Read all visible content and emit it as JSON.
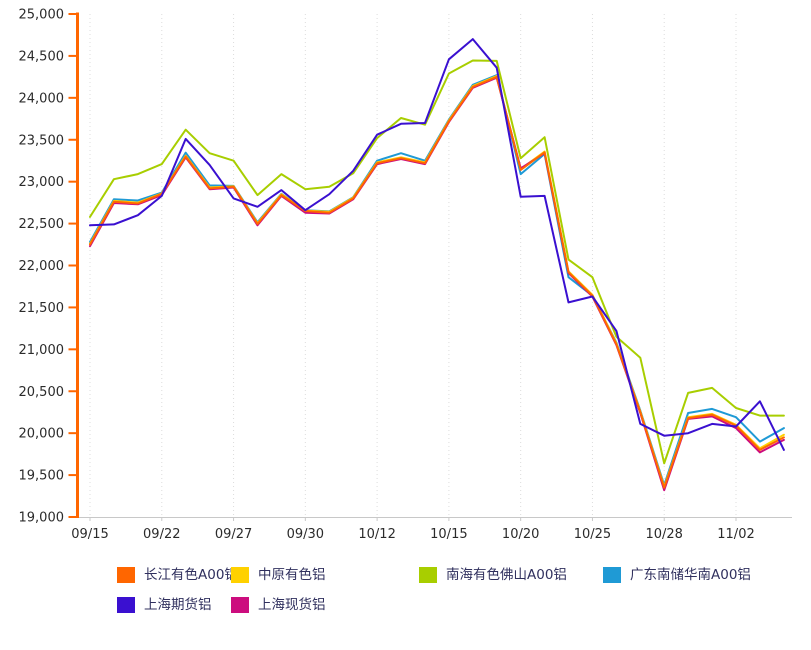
{
  "chart_data": {
    "type": "line",
    "title": "",
    "xlabel": "",
    "ylabel": "",
    "ylim": [
      19000,
      25000
    ],
    "y_tick_step": 500,
    "y_tick_labels": [
      "19,000",
      "19,500",
      "20,000",
      "20,500",
      "21,000",
      "21,500",
      "22,000",
      "22,500",
      "23,000",
      "23,500",
      "24,000",
      "24,500",
      "25,000"
    ],
    "x_labels": [
      "09/15",
      "09/22",
      "09/27",
      "09/30",
      "10/12",
      "10/15",
      "10/20",
      "10/25",
      "10/28",
      "11/02"
    ],
    "x_label_indices": [
      0,
      3,
      6,
      9,
      12,
      15,
      18,
      21,
      24,
      27
    ],
    "n_points": 30,
    "grid": "vertical-dotted",
    "legend_position": "bottom",
    "axis_color": "#FF6600",
    "grid_color": "#DCDCDC",
    "x_axis_color": "#C8C8C8",
    "tick_text_color": "#2B2B2B",
    "draw_order": [
      2,
      3,
      1,
      5,
      0,
      4
    ],
    "series": [
      {
        "name": "长江有色A00铝",
        "color": "#FF6600",
        "values": [
          22250,
          22760,
          22740,
          22855,
          23300,
          22920,
          22940,
          22495,
          22840,
          22650,
          22630,
          22800,
          23220,
          23280,
          23220,
          23720,
          24130,
          24250,
          23140,
          23350,
          21920,
          21640,
          21060,
          20250,
          19350,
          20180,
          20220,
          20090,
          19800,
          19950
        ]
      },
      {
        "name": "中原有色铝",
        "color": "#FFD100",
        "values": [
          22260,
          22770,
          22750,
          22860,
          23310,
          22930,
          22945,
          22505,
          22850,
          22655,
          22640,
          22810,
          23230,
          23290,
          23230,
          23730,
          24140,
          24260,
          23150,
          23360,
          21930,
          21650,
          21070,
          20260,
          19360,
          20190,
          20230,
          20100,
          19820,
          19980
        ]
      },
      {
        "name": "南海有色佛山A00铝",
        "color": "#A8CE00",
        "values": [
          22580,
          23030,
          23090,
          23210,
          23620,
          23340,
          23250,
          22840,
          23090,
          22910,
          22940,
          23100,
          23520,
          23760,
          23680,
          24290,
          24445,
          24440,
          23280,
          23530,
          22070,
          21860,
          21150,
          20900,
          19640,
          20480,
          20540,
          20300,
          20210,
          20210
        ]
      },
      {
        "name": "广东南储华南A00铝",
        "color": "#1F9AD5",
        "values": [
          22280,
          22790,
          22775,
          22870,
          23345,
          22955,
          22950,
          22515,
          22855,
          22660,
          22645,
          22815,
          23250,
          23340,
          23250,
          23740,
          24155,
          24270,
          23090,
          23330,
          21860,
          21640,
          21080,
          20270,
          19380,
          20240,
          20290,
          20190,
          19900,
          20060
        ]
      },
      {
        "name": "上海期货铝",
        "color": "#3A10D0",
        "values": [
          22480,
          22490,
          22600,
          22830,
          23510,
          23200,
          22800,
          22700,
          22900,
          22660,
          22850,
          23130,
          23560,
          23690,
          23700,
          24460,
          24700,
          24360,
          22820,
          22830,
          21560,
          21630,
          21220,
          20110,
          19970,
          20000,
          20110,
          20080,
          20380,
          19800
        ]
      },
      {
        "name": "上海现货铝",
        "color": "#CC0D7E",
        "values": [
          22230,
          22745,
          22730,
          22840,
          23290,
          22910,
          22930,
          22480,
          22830,
          22630,
          22620,
          22790,
          23210,
          23270,
          23210,
          23710,
          24120,
          24240,
          23160,
          23340,
          21910,
          21630,
          21050,
          20240,
          19320,
          20170,
          20200,
          20060,
          19770,
          19920
        ]
      }
    ]
  }
}
